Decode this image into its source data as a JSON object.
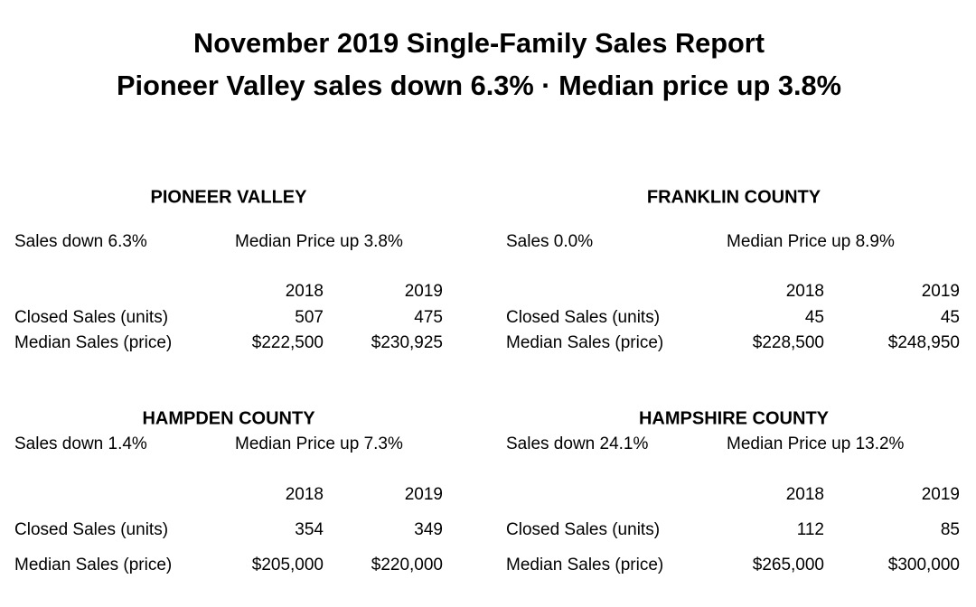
{
  "header": {
    "title": "November 2019 Single-Family Sales Report",
    "subtitle": "Pioneer Valley sales down 6.3% · Median price up 3.8%"
  },
  "panels": [
    {
      "heading": "PIONEER VALLEY",
      "sales": "Sales down 6.3%",
      "median_price": "Median Price up 3.8%",
      "columns": [
        "2018",
        "2019"
      ],
      "rows": [
        {
          "label": "Closed Sales (units)",
          "values": [
            "507",
            "475"
          ]
        },
        {
          "label": "Median Sales (price)",
          "values": [
            "$222,500",
            "$230,925"
          ]
        }
      ]
    },
    {
      "heading": "FRANKLIN COUNTY",
      "sales": "Sales 0.0%",
      "median_price": "Median Price up 8.9%",
      "columns": [
        "2018",
        "2019"
      ],
      "rows": [
        {
          "label": "Closed Sales (units)",
          "values": [
            "45",
            "45"
          ]
        },
        {
          "label": "Median Sales (price)",
          "values": [
            "$228,500",
            "$248,950"
          ]
        }
      ]
    },
    {
      "heading": "HAMPDEN COUNTY",
      "sales": "Sales down 1.4%",
      "median_price": "Median Price up 7.3%",
      "columns": [
        "2018",
        "2019"
      ],
      "rows": [
        {
          "label": "Closed Sales (units)",
          "values": [
            "354",
            "349"
          ]
        },
        {
          "label": "Median Sales (price)",
          "values": [
            "$205,000",
            "$220,000"
          ]
        }
      ]
    },
    {
      "heading": "HAMPSHIRE COUNTY",
      "sales": "Sales down 24.1%",
      "median_price": "Median Price up 13.2%",
      "columns": [
        "2018",
        "2019"
      ],
      "rows": [
        {
          "label": "Closed Sales (units)",
          "values": [
            "112",
            "85"
          ]
        },
        {
          "label": "Median Sales (price)",
          "values": [
            "$265,000",
            "$300,000"
          ]
        }
      ]
    }
  ]
}
